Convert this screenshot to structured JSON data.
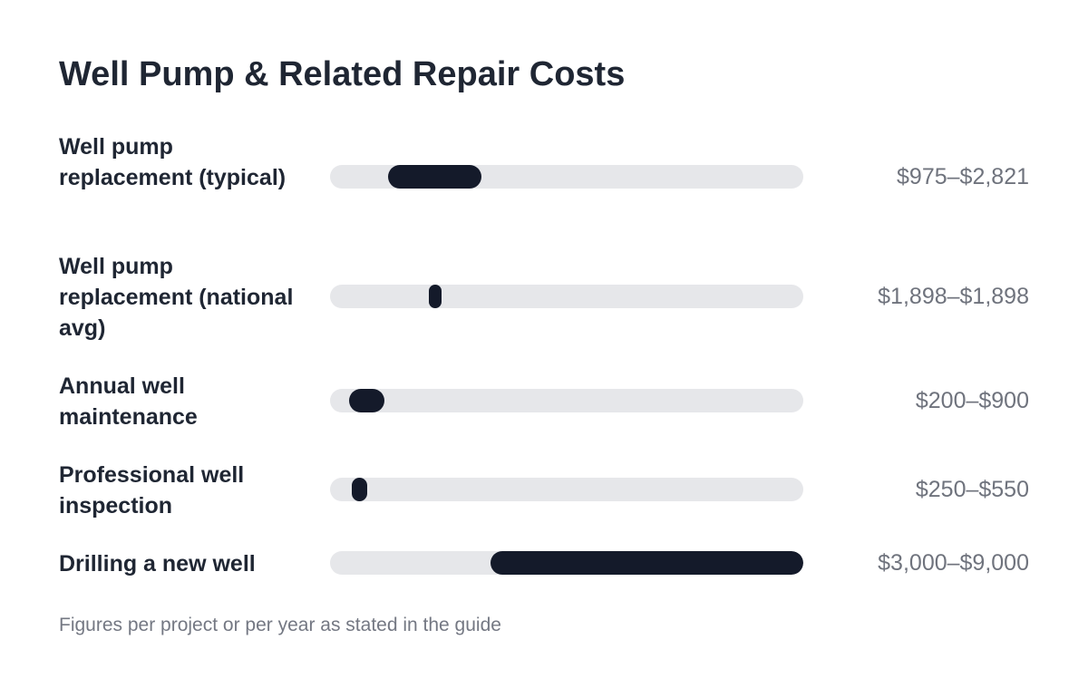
{
  "chart_data": {
    "type": "bar",
    "title": "Well Pump & Related Repair Costs",
    "footnote": "Figures per project or per year as stated in the guide",
    "xlim": [
      0,
      9000
    ],
    "grid": false,
    "legend": "none",
    "categories": [
      "Well pump replacement (typical)",
      "Well pump replacement (national avg)",
      "Annual well maintenance",
      "Professional well inspection",
      "Drilling a new well"
    ],
    "ranges": [
      {
        "low": 975,
        "high": 2821,
        "label": "$975–$2,821"
      },
      {
        "low": 1898,
        "high": 1898,
        "label": "$1,898–$1,898"
      },
      {
        "low": 200,
        "high": 900,
        "label": "$200–$900"
      },
      {
        "low": 250,
        "high": 550,
        "label": "$250–$550"
      },
      {
        "low": 3000,
        "high": 9000,
        "label": "$3,000–$9,000"
      }
    ],
    "colors": {
      "bar": "#141a2a",
      "track": "#e6e7ea",
      "title": "#1f2633",
      "value_label": "#6f737d"
    }
  }
}
